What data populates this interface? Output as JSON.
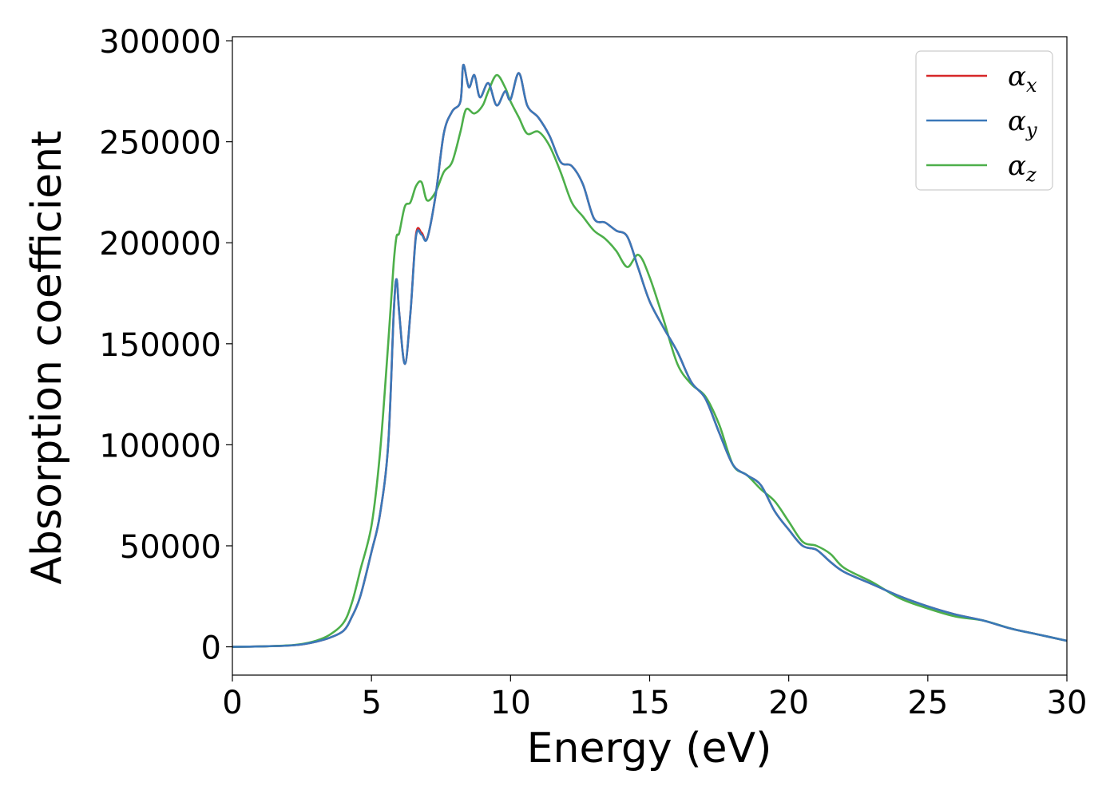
{
  "chart_data": {
    "type": "line",
    "title": "",
    "xlabel": "Energy (eV)",
    "ylabel": "Absorption coefficient",
    "xlim": [
      0,
      30
    ],
    "ylim": [
      -14000,
      302000
    ],
    "x_ticks": [
      0,
      5,
      10,
      15,
      20,
      25,
      30
    ],
    "y_ticks": [
      0,
      50000,
      100000,
      150000,
      200000,
      250000,
      300000
    ],
    "grid": false,
    "legend_position": "top-right",
    "legend": [
      {
        "symbol": "α",
        "subscript": "x",
        "color": "#d62728"
      },
      {
        "symbol": "α",
        "subscript": "y",
        "color": "#3a78b9"
      },
      {
        "symbol": "α",
        "subscript": "z",
        "color": "#4daf4a"
      }
    ],
    "series": [
      {
        "color": "#d62728",
        "x": [
          0,
          1,
          2,
          2.5,
          3,
          3.5,
          4,
          4.3,
          4.6,
          5,
          5.3,
          5.6,
          5.8,
          5.9,
          6.0,
          6.2,
          6.4,
          6.6,
          6.8,
          7,
          7.3,
          7.6,
          7.9,
          8.2,
          8.3,
          8.5,
          8.7,
          8.9,
          9.2,
          9.5,
          9.8,
          10.0,
          10.3,
          10.6,
          11,
          11.4,
          11.8,
          12.2,
          12.6,
          13.0,
          13.4,
          13.8,
          14.2,
          14.6,
          15,
          15.5,
          16,
          16.5,
          17,
          17.5,
          18,
          18.5,
          19,
          19.5,
          20,
          20.5,
          21,
          21.5,
          22,
          23,
          24,
          25,
          26,
          27,
          28,
          29,
          30
        ],
        "y": [
          0,
          200,
          600,
          1200,
          2500,
          4500,
          8000,
          15000,
          25000,
          47000,
          65000,
          100000,
          165000,
          182000,
          165000,
          140000,
          165000,
          204000,
          205000,
          202000,
          223000,
          254000,
          265000,
          270000,
          288000,
          277000,
          283000,
          272000,
          279000,
          268000,
          275000,
          271000,
          284000,
          268000,
          262000,
          253000,
          240000,
          238000,
          229000,
          212000,
          210000,
          206000,
          203000,
          187000,
          171000,
          158000,
          146000,
          131000,
          123000,
          106000,
          90000,
          85000,
          80000,
          67000,
          58000,
          50000,
          48000,
          42000,
          37000,
          31000,
          25000,
          20000,
          16000,
          13000,
          9000,
          6000,
          3000
        ]
      },
      {
        "color": "#3a78b9",
        "x": [
          0,
          1,
          2,
          2.5,
          3,
          3.5,
          4,
          4.3,
          4.6,
          5,
          5.3,
          5.6,
          5.8,
          5.9,
          6.0,
          6.2,
          6.4,
          6.6,
          6.8,
          7,
          7.3,
          7.6,
          7.9,
          8.2,
          8.3,
          8.5,
          8.7,
          8.9,
          9.2,
          9.5,
          9.8,
          10.0,
          10.3,
          10.6,
          11,
          11.4,
          11.8,
          12.2,
          12.6,
          13.0,
          13.4,
          13.8,
          14.2,
          14.6,
          15,
          15.5,
          16,
          16.5,
          17,
          17.5,
          18,
          18.5,
          19,
          19.5,
          20,
          20.5,
          21,
          21.5,
          22,
          23,
          24,
          25,
          26,
          27,
          28,
          29,
          30
        ],
        "y": [
          0,
          200,
          600,
          1200,
          2500,
          4500,
          8000,
          15000,
          25000,
          47000,
          65000,
          100000,
          165000,
          182000,
          165000,
          140000,
          165000,
          203000,
          204000,
          202000,
          223000,
          254000,
          265000,
          270000,
          288000,
          277000,
          283000,
          272000,
          279000,
          268000,
          275000,
          271000,
          284000,
          268000,
          262000,
          253000,
          240000,
          238000,
          229000,
          212000,
          210000,
          206000,
          203000,
          187000,
          171000,
          158000,
          146000,
          131000,
          123000,
          106000,
          90000,
          85000,
          80000,
          67000,
          58000,
          50000,
          48000,
          42000,
          37000,
          31000,
          25000,
          20000,
          16000,
          13000,
          9000,
          6000,
          3000
        ]
      },
      {
        "color": "#4daf4a",
        "x": [
          0,
          1,
          2,
          2.5,
          3,
          3.5,
          4,
          4.3,
          4.6,
          5,
          5.3,
          5.6,
          5.8,
          5.9,
          6.0,
          6.2,
          6.4,
          6.6,
          6.8,
          7,
          7.3,
          7.6,
          7.9,
          8.2,
          8.4,
          8.7,
          9.0,
          9.2,
          9.5,
          9.8,
          10.0,
          10.3,
          10.6,
          11,
          11.4,
          11.8,
          12.2,
          12.6,
          13.0,
          13.4,
          13.8,
          14.2,
          14.6,
          15,
          15.5,
          16,
          16.5,
          17,
          17.5,
          18,
          18.5,
          19,
          19.5,
          20,
          20.5,
          21,
          21.5,
          22,
          23,
          24,
          25,
          26,
          27,
          28,
          29,
          30
        ],
        "y": [
          0,
          200,
          700,
          1400,
          3000,
          6000,
          12000,
          22000,
          38000,
          60000,
          95000,
          150000,
          190000,
          203000,
          205000,
          218000,
          220000,
          228000,
          230000,
          221000,
          225000,
          235000,
          240000,
          255000,
          266000,
          264000,
          268000,
          275000,
          283000,
          277000,
          270000,
          262000,
          254000,
          255000,
          248000,
          235000,
          220000,
          213000,
          206000,
          202000,
          196000,
          188000,
          194000,
          183000,
          162000,
          140000,
          130000,
          124000,
          110000,
          90000,
          85000,
          78000,
          72000,
          62000,
          52000,
          50000,
          46000,
          39000,
          32000,
          24000,
          19000,
          15000,
          13000,
          9000,
          6000,
          3000
        ]
      }
    ]
  }
}
